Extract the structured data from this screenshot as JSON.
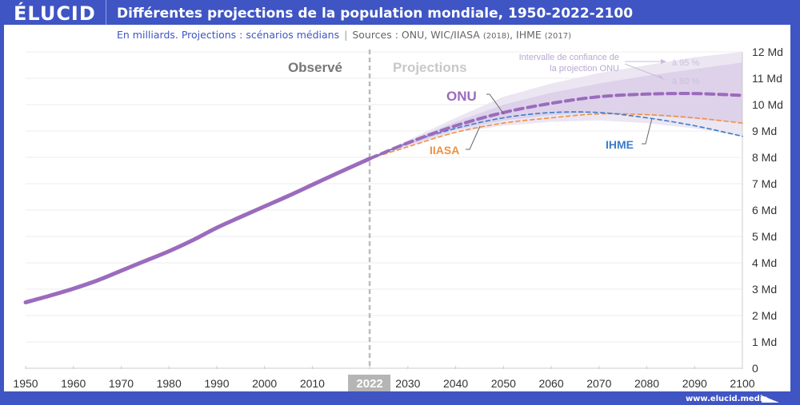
{
  "brand": {
    "logo": "ÉLUCID",
    "url": "www.elucid.media"
  },
  "header": {
    "title": "Différentes projections de la population mondiale, 1950-2022-2100",
    "subtitle_main": "En milliards. Projections : scénarios médians",
    "subtitle_sep": "|",
    "subtitle_sources_prefix": "Sources : ONU, WIC/IIASA",
    "subtitle_iiasa_year": "(2018)",
    "subtitle_ihme": ", IHME",
    "subtitle_ihme_year": "(2017)"
  },
  "colors": {
    "frame": "#3f55c4",
    "onu": "#9b6bbd",
    "iiasa": "#f0913f",
    "ihme": "#3b7cc9",
    "ci95": "#ece6f3",
    "ci80": "#ddd2ea",
    "divider": "#bbbbbb"
  },
  "chart_data": {
    "type": "line",
    "title": "Différentes projections de la population mondiale, 1950-2022-2100",
    "xlabel": "",
    "ylabel": "En milliards",
    "xlim": [
      1950,
      2100
    ],
    "ylim": [
      0,
      12
    ],
    "grid": true,
    "x_ticks": [
      "1950",
      "1960",
      "1970",
      "1980",
      "1990",
      "2000",
      "2010",
      "2022",
      "2030",
      "2040",
      "2050",
      "2060",
      "2070",
      "2080",
      "2090",
      "2100"
    ],
    "x_tick_values": [
      1950,
      1960,
      1970,
      1980,
      1990,
      2000,
      2010,
      2022,
      2030,
      2040,
      2050,
      2060,
      2070,
      2080,
      2090,
      2100
    ],
    "highlight_x": 2022,
    "y_ticks": [
      "0",
      "1 Md",
      "2 Md",
      "3 Md",
      "4 Md",
      "5 Md",
      "6 Md",
      "7 Md",
      "8 Md",
      "9 Md",
      "10 Md",
      "11 Md",
      "12 Md"
    ],
    "y_tick_values": [
      0,
      1,
      2,
      3,
      4,
      5,
      6,
      7,
      8,
      9,
      10,
      11,
      12
    ],
    "annotations": {
      "observed": "Observé",
      "projections": "Projections",
      "onu": "ONU",
      "iiasa": "IIASA",
      "ihme": "IHME",
      "ci_label_1": "Intervalle de confiance de",
      "ci_label_2": "la projection ONU",
      "ci95": "à 95 %",
      "ci80": "à 80 %"
    },
    "series": [
      {
        "name": "Observé",
        "style": "solid",
        "x": [
          1950,
          1955,
          1960,
          1965,
          1970,
          1975,
          1980,
          1985,
          1990,
          1995,
          2000,
          2005,
          2010,
          2015,
          2022
        ],
        "values": [
          2.5,
          2.75,
          3.02,
          3.33,
          3.7,
          4.07,
          4.44,
          4.86,
          5.33,
          5.74,
          6.14,
          6.54,
          6.96,
          7.38,
          7.95
        ]
      },
      {
        "name": "ONU",
        "style": "dashed-thick",
        "x": [
          2022,
          2030,
          2040,
          2050,
          2060,
          2070,
          2080,
          2090,
          2100
        ],
        "values": [
          7.95,
          8.55,
          9.2,
          9.7,
          10.05,
          10.3,
          10.4,
          10.42,
          10.35
        ]
      },
      {
        "name": "IIASA",
        "style": "dashed",
        "x": [
          2022,
          2030,
          2040,
          2050,
          2060,
          2070,
          2080,
          2090,
          2100
        ],
        "values": [
          7.95,
          8.4,
          8.95,
          9.3,
          9.5,
          9.65,
          9.62,
          9.5,
          9.3
        ]
      },
      {
        "name": "IHME",
        "style": "dashed",
        "x": [
          2022,
          2030,
          2040,
          2050,
          2060,
          2070,
          2080,
          2090,
          2100
        ],
        "values": [
          7.95,
          8.55,
          9.1,
          9.5,
          9.7,
          9.7,
          9.5,
          9.2,
          8.8
        ]
      }
    ],
    "bands": [
      {
        "name": "ONU 95 %",
        "x": [
          2022,
          2030,
          2040,
          2050,
          2060,
          2070,
          2080,
          2090,
          2100
        ],
        "upper": [
          7.95,
          8.65,
          9.5,
          10.3,
          10.8,
          11.2,
          11.5,
          11.8,
          12.0
        ],
        "lower": [
          7.95,
          8.4,
          8.95,
          9.2,
          9.35,
          9.4,
          9.3,
          9.1,
          8.8
        ]
      },
      {
        "name": "ONU 80 %",
        "x": [
          2022,
          2030,
          2040,
          2050,
          2060,
          2070,
          2080,
          2090,
          2100
        ],
        "upper": [
          7.95,
          8.6,
          9.35,
          10.0,
          10.45,
          10.8,
          11.1,
          11.35,
          11.6
        ],
        "lower": [
          7.95,
          8.45,
          9.05,
          9.4,
          9.6,
          9.7,
          9.6,
          9.45,
          9.3
        ]
      }
    ]
  }
}
